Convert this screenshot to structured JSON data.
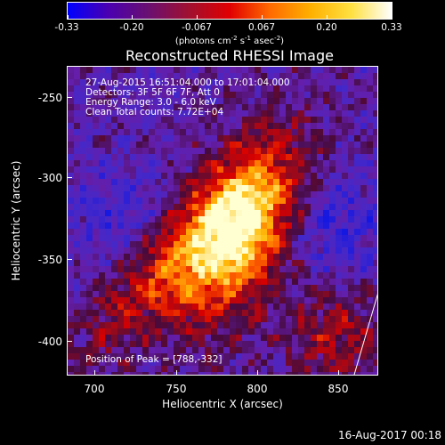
{
  "colorbar": {
    "colors": [
      "#0000ff",
      "#4a00b0",
      "#6a1070",
      "#a01030",
      "#e00000",
      "#ff6a00",
      "#ffb000",
      "#ffe040",
      "#ffffff"
    ],
    "ticks": [
      "-0.33",
      "-0.20",
      "-0.067",
      "0.067",
      "0.20",
      "0.33"
    ],
    "unit_parts": {
      "open": "(photons cm",
      "exp1": "-2",
      "s": " s",
      "exp2": "-1",
      "asec": " asec",
      "exp3": "-2",
      "close": ")"
    }
  },
  "title": "Reconstructed RHESSI Image",
  "info": {
    "line1": "27-Aug-2015 16:51:04.000 to 17:01:04.000",
    "line2": "Detectors: 3F 5F 6F 7F, Att 0",
    "line3": "Energy Range: 3.0 - 6.0 keV",
    "line4": "Clean     Total counts: 7.72E+04"
  },
  "peak_label": "Position of Peak = [788,-332]",
  "x_axis": {
    "label": "Heliocentric X (arcsec)",
    "ticks": [
      "700",
      "750",
      "800",
      "850"
    ],
    "range": [
      683,
      875
    ]
  },
  "y_axis": {
    "label": "Heliocentric Y (arcsec)",
    "ticks": [
      "-250",
      "-300",
      "-350",
      "-400"
    ],
    "range": [
      -422,
      -232
    ]
  },
  "peak": {
    "x": 788,
    "y": -332
  },
  "timestamp": "16-Aug-2017 00:18"
}
